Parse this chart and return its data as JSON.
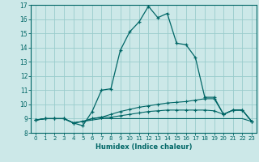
{
  "title": "",
  "xlabel": "Humidex (Indice chaleur)",
  "bg_color": "#cce8e8",
  "grid_color": "#99cccc",
  "line_color": "#006666",
  "xlim": [
    -0.5,
    23.5
  ],
  "ylim": [
    8,
    17
  ],
  "yticks": [
    8,
    9,
    10,
    11,
    12,
    13,
    14,
    15,
    16,
    17
  ],
  "xticks": [
    0,
    1,
    2,
    3,
    4,
    5,
    6,
    7,
    8,
    9,
    10,
    11,
    12,
    13,
    14,
    15,
    16,
    17,
    18,
    19,
    20,
    21,
    22,
    23
  ],
  "curve1_x": [
    0,
    1,
    2,
    3,
    4,
    5,
    6,
    7,
    8,
    9,
    10,
    11,
    12,
    13,
    14,
    15,
    16,
    17,
    18,
    19,
    20,
    21,
    22,
    23
  ],
  "curve1_y": [
    8.9,
    9.0,
    9.0,
    9.0,
    8.7,
    8.5,
    9.5,
    11.0,
    11.1,
    13.8,
    15.1,
    15.8,
    16.9,
    16.1,
    16.4,
    14.3,
    14.2,
    13.3,
    10.5,
    10.5,
    9.3,
    9.6,
    9.6,
    8.8
  ],
  "curve2_x": [
    0,
    1,
    2,
    3,
    4,
    5,
    6,
    7,
    8,
    9,
    10,
    11,
    12,
    13,
    14,
    15,
    16,
    17,
    18,
    19,
    20,
    21,
    22,
    23
  ],
  "curve2_y": [
    8.9,
    9.0,
    9.0,
    9.0,
    8.7,
    8.8,
    9.0,
    9.1,
    9.3,
    9.5,
    9.65,
    9.8,
    9.9,
    10.0,
    10.1,
    10.15,
    10.2,
    10.3,
    10.4,
    10.4,
    9.3,
    9.6,
    9.6,
    8.8
  ],
  "curve3_x": [
    0,
    1,
    2,
    3,
    4,
    5,
    6,
    7,
    8,
    9,
    10,
    11,
    12,
    13,
    14,
    15,
    16,
    17,
    18,
    19,
    20,
    21,
    22,
    23
  ],
  "curve3_y": [
    8.9,
    9.0,
    9.0,
    9.0,
    8.7,
    8.8,
    8.9,
    9.0,
    9.0,
    9.0,
    9.0,
    9.0,
    9.0,
    9.0,
    9.0,
    9.0,
    9.0,
    9.0,
    9.0,
    9.0,
    9.0,
    9.0,
    9.0,
    8.8
  ],
  "curve4_x": [
    0,
    1,
    2,
    3,
    4,
    5,
    6,
    7,
    8,
    9,
    10,
    11,
    12,
    13,
    14,
    15,
    16,
    17,
    18,
    19,
    20,
    21,
    22,
    23
  ],
  "curve4_y": [
    8.9,
    9.0,
    9.0,
    9.0,
    8.7,
    8.8,
    9.0,
    9.1,
    9.1,
    9.2,
    9.3,
    9.4,
    9.5,
    9.55,
    9.6,
    9.6,
    9.6,
    9.6,
    9.6,
    9.55,
    9.3,
    9.6,
    9.6,
    8.8
  ]
}
